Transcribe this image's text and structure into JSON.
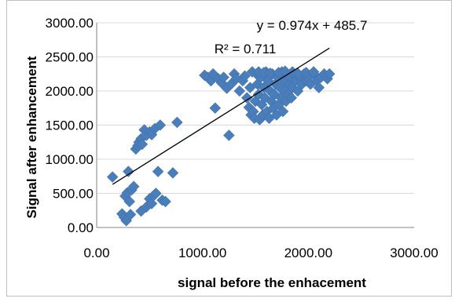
{
  "chart_data": {
    "type": "scatter",
    "xlabel": "signal before the enhacement",
    "ylabel": "Signal after enhancement",
    "xlim": [
      0,
      3000
    ],
    "ylim": [
      0,
      3000
    ],
    "x_ticks": [
      "0.00",
      "1000.00",
      "2000.00",
      "3000.00"
    ],
    "y_ticks": [
      "0.00",
      "500.00",
      "1000.00",
      "1500.00",
      "2000.00",
      "2500.00",
      "3000.00"
    ],
    "grid": "horizontal",
    "marker_color": "#4a7ebb",
    "trendline_color": "#000000",
    "trendline": {
      "slope": 0.974,
      "intercept": 485.7,
      "x_range": [
        150,
        2200
      ]
    },
    "annotations": {
      "equation": "y = 0.974x + 485.7",
      "r_squared": "R² = 0.711"
    },
    "series": [
      {
        "points": [
          [
            150,
            740
          ],
          [
            240,
            200
          ],
          [
            260,
            150
          ],
          [
            270,
            460
          ],
          [
            280,
            100
          ],
          [
            290,
            510
          ],
          [
            300,
            820
          ],
          [
            310,
            380
          ],
          [
            320,
            190
          ],
          [
            330,
            550
          ],
          [
            350,
            600
          ],
          [
            370,
            1150
          ],
          [
            390,
            1200
          ],
          [
            400,
            1250
          ],
          [
            420,
            1300
          ],
          [
            430,
            1220
          ],
          [
            450,
            1430
          ],
          [
            470,
            1350
          ],
          [
            500,
            1400
          ],
          [
            520,
            1360
          ],
          [
            550,
            1450
          ],
          [
            600,
            1500
          ],
          [
            420,
            240
          ],
          [
            470,
            300
          ],
          [
            500,
            420
          ],
          [
            520,
            350
          ],
          [
            540,
            470
          ],
          [
            560,
            500
          ],
          [
            580,
            820
          ],
          [
            620,
            400
          ],
          [
            650,
            380
          ],
          [
            720,
            800
          ],
          [
            760,
            1540
          ],
          [
            1020,
            2230
          ],
          [
            1050,
            2200
          ],
          [
            1080,
            2150
          ],
          [
            1100,
            2250
          ],
          [
            1120,
            1750
          ],
          [
            1150,
            2180
          ],
          [
            1180,
            2120
          ],
          [
            1200,
            2200
          ],
          [
            1230,
            2040
          ],
          [
            1250,
            1350
          ],
          [
            1270,
            2100
          ],
          [
            1300,
            2250
          ],
          [
            1320,
            2180
          ],
          [
            1350,
            2000
          ],
          [
            1380,
            2150
          ],
          [
            1400,
            2220
          ],
          [
            1420,
            1900
          ],
          [
            1440,
            1760
          ],
          [
            1450,
            2050
          ],
          [
            1460,
            1650
          ],
          [
            1480,
            1700
          ],
          [
            1490,
            1600
          ],
          [
            1500,
            1850
          ],
          [
            1510,
            2250
          ],
          [
            1520,
            2100
          ],
          [
            1530,
            1950
          ],
          [
            1540,
            1580
          ],
          [
            1550,
            2200
          ],
          [
            1560,
            1800
          ],
          [
            1570,
            1650
          ],
          [
            1580,
            2050
          ],
          [
            1590,
            1900
          ],
          [
            1600,
            2280
          ],
          [
            1610,
            1700
          ],
          [
            1620,
            2150
          ],
          [
            1630,
            1600
          ],
          [
            1640,
            2000
          ],
          [
            1650,
            1850
          ],
          [
            1660,
            2250
          ],
          [
            1670,
            1750
          ],
          [
            1680,
            1950
          ],
          [
            1690,
            2100
          ],
          [
            1700,
            1650
          ],
          [
            1710,
            2200
          ],
          [
            1720,
            1800
          ],
          [
            1730,
            2050
          ],
          [
            1740,
            1900
          ],
          [
            1750,
            2280
          ],
          [
            1760,
            1700
          ],
          [
            1770,
            2150
          ],
          [
            1780,
            2000
          ],
          [
            1790,
            1850
          ],
          [
            1800,
            2250
          ],
          [
            1810,
            1950
          ],
          [
            1820,
            2100
          ],
          [
            1830,
            2200
          ],
          [
            1840,
            1900
          ],
          [
            1850,
            2050
          ],
          [
            1860,
            2250
          ],
          [
            1880,
            2150
          ],
          [
            1900,
            2000
          ],
          [
            1920,
            2200
          ],
          [
            1940,
            2100
          ],
          [
            1960,
            2250
          ],
          [
            1980,
            2150
          ],
          [
            2000,
            2200
          ],
          [
            2020,
            2100
          ],
          [
            2050,
            2250
          ],
          [
            2080,
            2150
          ],
          [
            2100,
            2050
          ],
          [
            2120,
            2200
          ],
          [
            2150,
            2250
          ],
          [
            2180,
            2180
          ],
          [
            2200,
            2250
          ],
          [
            1470,
            2280
          ],
          [
            1530,
            2280
          ],
          [
            1580,
            2270
          ],
          [
            1640,
            2260
          ],
          [
            1720,
            2270
          ],
          [
            1780,
            2290
          ],
          [
            1850,
            2280
          ],
          [
            1900,
            2260
          ],
          [
            1980,
            2270
          ],
          [
            2050,
            2280
          ]
        ]
      }
    ]
  }
}
